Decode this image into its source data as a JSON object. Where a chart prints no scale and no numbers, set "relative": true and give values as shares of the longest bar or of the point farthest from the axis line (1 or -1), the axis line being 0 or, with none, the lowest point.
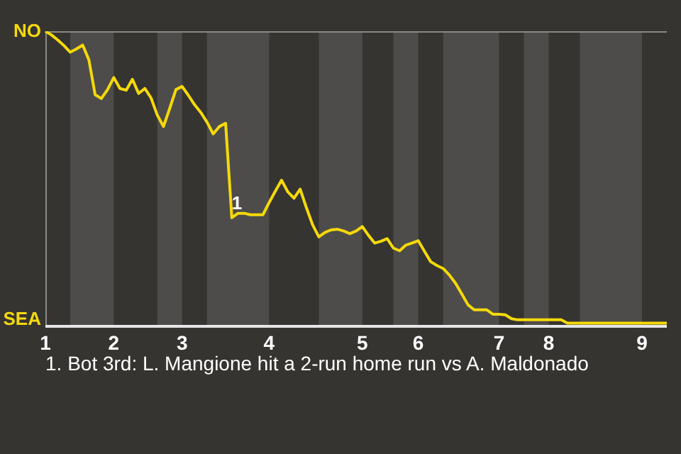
{
  "chart_data": {
    "type": "line",
    "relative": true,
    "categories": [
      "1",
      null,
      null,
      null,
      null,
      null,
      null,
      null,
      null,
      null,
      null,
      "2",
      null,
      null,
      null,
      null,
      null,
      null,
      null,
      null,
      null,
      null,
      "3",
      null,
      null,
      null,
      null,
      null,
      null,
      null,
      null,
      null,
      null,
      null,
      null,
      null,
      "4",
      null,
      null,
      null,
      null,
      null,
      null,
      null,
      null,
      null,
      null,
      null,
      null,
      null,
      null,
      "5",
      null,
      null,
      null,
      null,
      null,
      null,
      null,
      null,
      "6",
      null,
      null,
      null,
      null,
      null,
      null,
      null,
      null,
      null,
      null,
      null,
      null,
      "7",
      null,
      null,
      null,
      null,
      null,
      null,
      null,
      "8",
      null,
      null,
      null,
      null,
      null,
      null,
      null,
      null,
      null,
      null,
      null,
      null,
      null,
      null,
      "9",
      null,
      null,
      null,
      null
    ],
    "series": [
      {
        "color": "#f5d90a",
        "values": [
          1.0,
          0.987,
          0.97,
          0.951,
          0.929,
          0.94,
          0.953,
          0.903,
          0.785,
          0.772,
          0.802,
          0.843,
          0.806,
          0.8,
          0.837,
          0.789,
          0.806,
          0.774,
          0.716,
          0.677,
          0.738,
          0.802,
          0.813,
          0.783,
          0.751,
          0.725,
          0.692,
          0.652,
          0.677,
          0.688,
          0.368,
          0.383,
          0.383,
          0.378,
          0.378,
          0.378,
          0.419,
          0.458,
          0.495,
          0.456,
          0.434,
          0.465,
          0.402,
          0.344,
          0.303,
          0.318,
          0.327,
          0.329,
          0.323,
          0.314,
          0.323,
          0.338,
          0.308,
          0.282,
          0.288,
          0.297,
          0.265,
          0.256,
          0.275,
          0.282,
          0.29,
          0.254,
          0.219,
          0.206,
          0.196,
          0.174,
          0.146,
          0.11,
          0.073,
          0.056,
          0.056,
          0.056,
          0.041,
          0.041,
          0.039,
          0.026,
          0.022,
          0.022,
          0.022,
          0.022,
          0.022,
          0.022,
          0.022,
          0.022,
          0.011,
          0.011,
          0.011,
          0.011,
          0.011,
          0.011,
          0.011,
          0.011,
          0.011,
          0.011,
          0.011,
          0.011,
          0.011,
          0.011,
          0.011,
          0.011,
          0.011
        ]
      }
    ],
    "marker": "none",
    "line_style": "solid",
    "annotations": [
      "NO",
      "SEA",
      {
        "text": "1",
        "y": 0.368
      },
      "1. Bot 3rd: L. Mangione hit a 2-run home run vs A. Maldonado"
    ]
  }
}
